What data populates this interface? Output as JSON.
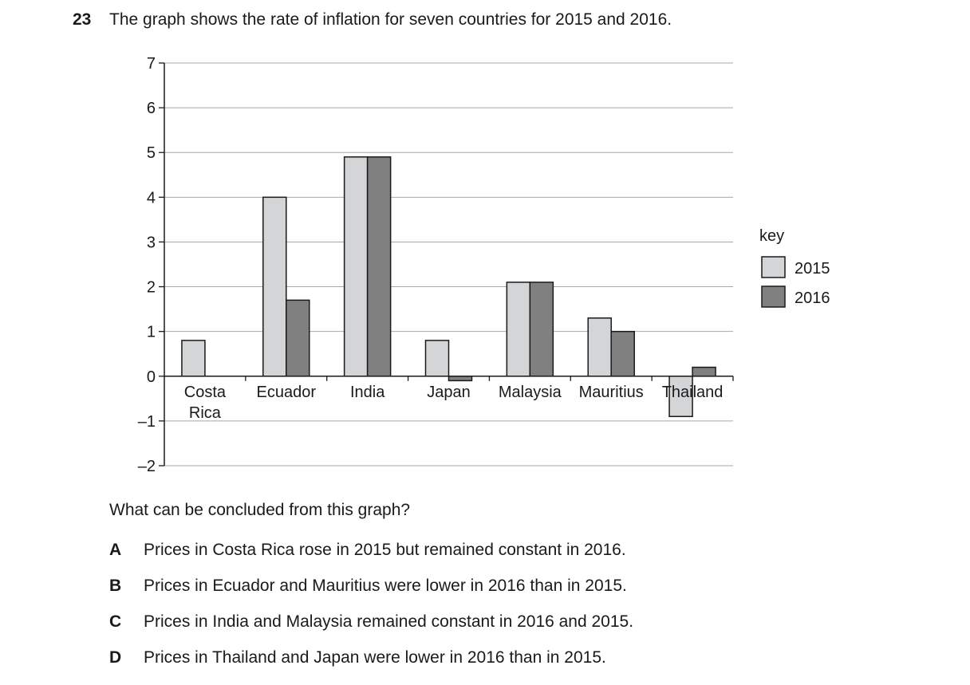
{
  "question": {
    "number": "23",
    "stem": "The graph shows the rate of inflation for seven countries for 2015 and 2016.",
    "prompt": "What can be concluded from this graph?",
    "options": [
      {
        "letter": "A",
        "text": "Prices in Costa Rica rose in 2015 but remained constant in 2016."
      },
      {
        "letter": "B",
        "text": "Prices in Ecuador and Mauritius were lower in 2016 than in 2015."
      },
      {
        "letter": "C",
        "text": "Prices in India and Malaysia remained constant in 2016 and 2015."
      },
      {
        "letter": "D",
        "text": "Prices in Thailand and Japan were lower in 2016 than in 2015."
      }
    ]
  },
  "chart_data": {
    "type": "bar",
    "title": "",
    "xlabel": "",
    "ylabel": "",
    "ylim": [
      -2,
      7
    ],
    "y_ticks": [
      "7",
      "6",
      "5",
      "4",
      "3",
      "2",
      "1",
      "0",
      "–1",
      "–2"
    ],
    "y_tick_values": [
      7,
      6,
      5,
      4,
      3,
      2,
      1,
      0,
      -1,
      -2
    ],
    "grid": true,
    "categories": [
      [
        "Costa",
        "Rica"
      ],
      [
        "Ecuador"
      ],
      [
        "India"
      ],
      [
        "Japan"
      ],
      [
        "Malaysia"
      ],
      [
        "Mauritius"
      ],
      [
        "Thailand"
      ]
    ],
    "series": [
      {
        "name": "2015",
        "color": "#d4d5d7",
        "values": [
          0.8,
          4.0,
          4.9,
          0.8,
          2.1,
          1.3,
          -0.9
        ]
      },
      {
        "name": "2016",
        "color": "#808080",
        "values": [
          0.0,
          1.7,
          4.9,
          -0.1,
          2.1,
          1.0,
          0.2
        ]
      }
    ],
    "legend": {
      "title": "key",
      "position": "right"
    }
  }
}
